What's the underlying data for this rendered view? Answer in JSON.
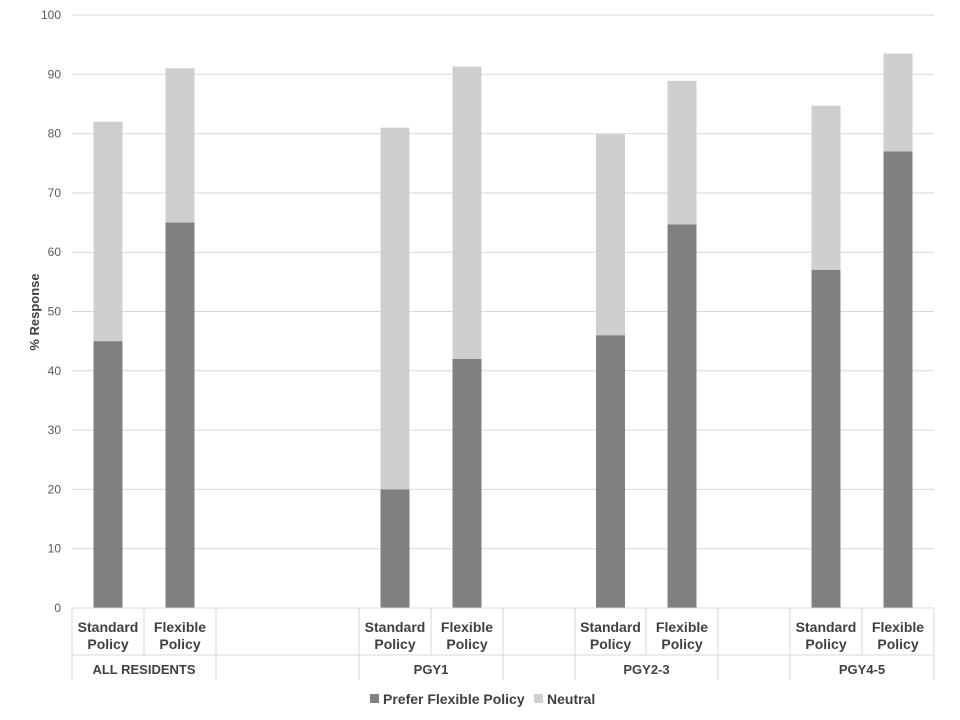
{
  "chart_data": {
    "type": "bar",
    "stacked": true,
    "ylabel": "% Response",
    "ylim": [
      0,
      100
    ],
    "yticks": [
      "0",
      "10",
      "20",
      "30",
      "40",
      "50",
      "60",
      "70",
      "80",
      "90",
      "100"
    ],
    "grid": true,
    "legend_position": "bottom",
    "groups": [
      {
        "label": "ALL RESIDENTS",
        "categories": [
          "Standard\nPolicy",
          "Flexible\nPolicy"
        ]
      },
      {
        "label": "PGY1",
        "categories": [
          "Standard\nPolicy",
          "Flexible\nPolicy"
        ]
      },
      {
        "label": "PGY2-3",
        "categories": [
          "Standard\nPolicy",
          "Flexible\nPolicy"
        ]
      },
      {
        "label": "PGY4-5",
        "categories": [
          "Standard\nPolicy",
          "Flexible\nPolicy"
        ]
      }
    ],
    "series": [
      {
        "name": "Prefer Flexible Policy",
        "color": "#808080",
        "values": [
          45,
          65,
          20,
          42,
          46,
          64.7,
          57,
          77
        ]
      },
      {
        "name": "Neutral",
        "color": "#d0cece",
        "values": [
          37,
          26,
          61,
          49.3,
          33.9,
          24.2,
          27.7,
          16.5
        ]
      }
    ]
  }
}
